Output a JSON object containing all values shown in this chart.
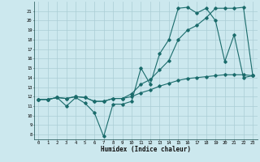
{
  "title": "",
  "xlabel": "Humidex (Indice chaleur)",
  "bg_color": "#cce8ee",
  "grid_color": "#aacdd5",
  "line_color": "#1a6b6b",
  "xlim": [
    -0.5,
    23.5
  ],
  "ylim": [
    7.5,
    22.0
  ],
  "xticks": [
    0,
    1,
    2,
    3,
    4,
    5,
    6,
    7,
    8,
    9,
    10,
    11,
    12,
    13,
    14,
    15,
    16,
    17,
    18,
    19,
    20,
    21,
    22,
    23
  ],
  "yticks": [
    8,
    9,
    10,
    11,
    12,
    13,
    14,
    15,
    16,
    17,
    18,
    19,
    20,
    21
  ],
  "line1_x": [
    0,
    1,
    2,
    3,
    4,
    5,
    6,
    7,
    8,
    9,
    10,
    11,
    12,
    13,
    14,
    15,
    16,
    17,
    18,
    19,
    20,
    21,
    22,
    23
  ],
  "line1_y": [
    11.7,
    11.7,
    11.9,
    11.0,
    11.9,
    11.3,
    10.3,
    7.8,
    11.2,
    11.2,
    11.5,
    15.0,
    13.3,
    16.5,
    18.0,
    21.3,
    21.4,
    20.8,
    21.3,
    20.0,
    15.7,
    18.5,
    14.0,
    14.2
  ],
  "line2_x": [
    0,
    1,
    2,
    3,
    4,
    5,
    6,
    7,
    8,
    9,
    10,
    11,
    12,
    13,
    14,
    15,
    16,
    17,
    18,
    19,
    20,
    21,
    22,
    23
  ],
  "line2_y": [
    11.7,
    11.7,
    11.9,
    11.8,
    12.0,
    11.9,
    11.5,
    11.5,
    11.8,
    11.8,
    12.3,
    13.3,
    13.8,
    14.8,
    15.8,
    18.0,
    19.0,
    19.5,
    20.3,
    21.3,
    21.3,
    21.3,
    21.4,
    14.2
  ],
  "line3_x": [
    0,
    1,
    2,
    3,
    4,
    5,
    6,
    7,
    8,
    9,
    10,
    11,
    12,
    13,
    14,
    15,
    16,
    17,
    18,
    19,
    20,
    21,
    22,
    23
  ],
  "line3_y": [
    11.7,
    11.7,
    11.9,
    11.8,
    12.0,
    11.9,
    11.5,
    11.5,
    11.8,
    11.8,
    12.0,
    12.4,
    12.7,
    13.1,
    13.4,
    13.7,
    13.9,
    14.0,
    14.1,
    14.2,
    14.3,
    14.3,
    14.3,
    14.2
  ]
}
